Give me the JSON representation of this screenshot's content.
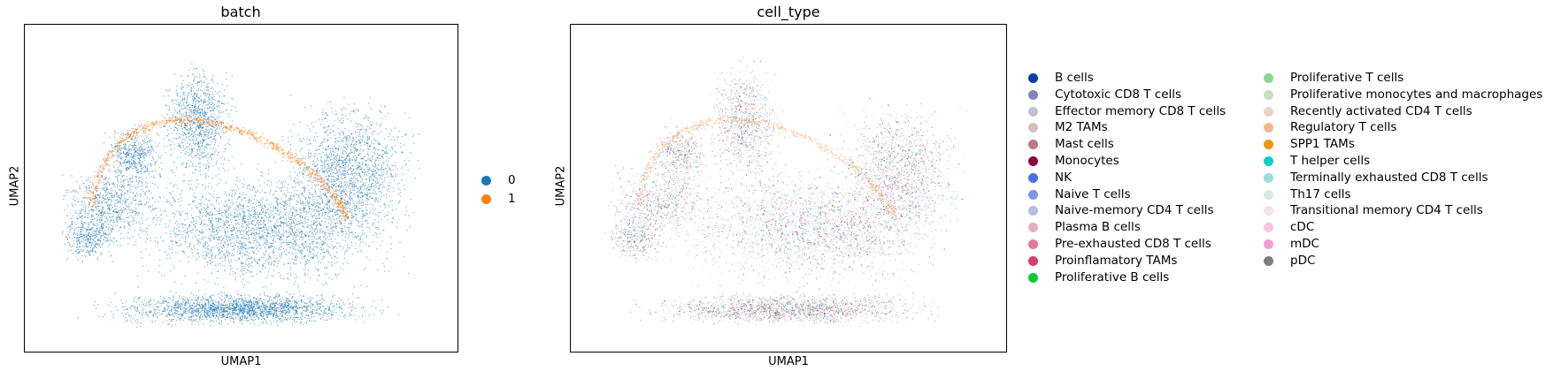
{
  "chart_data": [
    {
      "type": "scatter",
      "title": "batch",
      "xlabel": "UMAP1",
      "ylabel": "UMAP2",
      "grid": false,
      "legend_placement": "right",
      "legend": [
        {
          "label": "0",
          "color": "#1f77b4"
        },
        {
          "label": "1",
          "color": "#ff7f0e"
        }
      ]
    },
    {
      "type": "scatter",
      "title": "cell_type",
      "xlabel": "UMAP1",
      "ylabel": "UMAP2",
      "grid": false,
      "legend_placement": "right",
      "legend": [
        {
          "label": "B cells",
          "color": "#023fa5"
        },
        {
          "label": "Cytotoxic CD8 T cells",
          "color": "#7d87b9"
        },
        {
          "label": "Effector memory CD8 T cells",
          "color": "#bec1d4"
        },
        {
          "label": "M2 TAMs",
          "color": "#d6bcc0"
        },
        {
          "label": "Mast cells",
          "color": "#bb7784"
        },
        {
          "label": "Monocytes",
          "color": "#8e063b"
        },
        {
          "label": "NK",
          "color": "#4a6fe3"
        },
        {
          "label": "Naive T cells",
          "color": "#8595e1"
        },
        {
          "label": "Naive-memory CD4 T cells",
          "color": "#b5bbe3"
        },
        {
          "label": "Plasma B cells",
          "color": "#e6afb9"
        },
        {
          "label": "Pre-exhausted CD8 T cells",
          "color": "#e07b91"
        },
        {
          "label": "Proinflamatory TAMs",
          "color": "#d33f6a"
        },
        {
          "label": "Proliferative B cells",
          "color": "#11c638"
        },
        {
          "label": "Proliferative T cells",
          "color": "#8dd593"
        },
        {
          "label": "Proliferative monocytes and macrophages",
          "color": "#c6dec7"
        },
        {
          "label": "Recently activated CD4 T cells",
          "color": "#ead3c6"
        },
        {
          "label": "Regulatory T cells",
          "color": "#f0b98d"
        },
        {
          "label": "SPP1 TAMs",
          "color": "#ef9708"
        },
        {
          "label": "T helper cells",
          "color": "#0fcfc0"
        },
        {
          "label": "Terminally exhausted CD8 T cells",
          "color": "#9cded6"
        },
        {
          "label": "Th17 cells",
          "color": "#d5eae7"
        },
        {
          "label": "Transitional memory CD4 T cells",
          "color": "#f3e1eb"
        },
        {
          "label": "cDC",
          "color": "#f6c4e1"
        },
        {
          "label": "mDC",
          "color": "#f79cd4"
        },
        {
          "label": "pDC",
          "color": "#7f7f7f"
        }
      ]
    }
  ]
}
